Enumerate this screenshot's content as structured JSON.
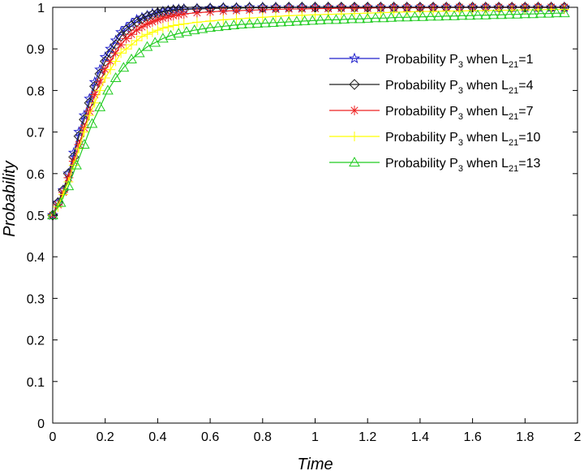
{
  "chart_data": {
    "type": "line",
    "title": "",
    "xlabel": "Time",
    "ylabel": "Probability",
    "xlim": [
      0,
      2
    ],
    "ylim": [
      0,
      1
    ],
    "xticks": [
      "0",
      "0.2",
      "0.4",
      "0.6",
      "0.8",
      "1",
      "1.2",
      "1.4",
      "1.6",
      "1.8",
      "2"
    ],
    "yticks": [
      "0",
      "0.1",
      "0.2",
      "0.3",
      "0.4",
      "0.5",
      "0.6",
      "0.7",
      "0.8",
      "0.9",
      "1"
    ],
    "grid": false,
    "legend_position": "top-right",
    "series": [
      {
        "name": "Probability P3 when L21=1",
        "legend": {
          "pre": "Probability P",
          "sub1": "3",
          "mid": " when L",
          "sub2": "21",
          "post": "=1"
        },
        "color": "#2222cc",
        "marker": "star",
        "x": [
          0,
          0.02,
          0.04,
          0.06,
          0.08,
          0.1,
          0.12,
          0.14,
          0.16,
          0.18,
          0.2,
          0.22,
          0.24,
          0.26,
          0.28,
          0.3,
          0.32,
          0.34,
          0.36,
          0.38,
          0.4,
          0.42,
          0.44,
          0.46,
          0.48,
          0.5,
          0.55,
          0.6,
          0.65,
          0.7,
          0.75,
          0.8,
          0.85,
          0.9,
          0.95,
          1,
          1.05,
          1.1,
          1.15,
          1.2,
          1.25,
          1.3,
          1.35,
          1.4,
          1.45,
          1.5,
          1.55,
          1.6,
          1.65,
          1.7,
          1.75,
          1.8,
          1.85,
          1.9,
          1.95
        ],
        "y": [
          0.5,
          0.53,
          0.56,
          0.6,
          0.65,
          0.7,
          0.74,
          0.78,
          0.82,
          0.85,
          0.88,
          0.9,
          0.92,
          0.94,
          0.95,
          0.96,
          0.97,
          0.975,
          0.98,
          0.985,
          0.988,
          0.99,
          0.992,
          0.994,
          0.995,
          0.996,
          0.997,
          0.998,
          0.999,
          0.999,
          1,
          1,
          1,
          1,
          1,
          1,
          1,
          1,
          1,
          1,
          1,
          1,
          1,
          1,
          1,
          1,
          1,
          1,
          1,
          1,
          1,
          1,
          1,
          1,
          1
        ]
      },
      {
        "name": "Probability P3 when L21=4",
        "legend": {
          "pre": "Probability P",
          "sub1": "3",
          "mid": " when L",
          "sub2": "21",
          "post": "=4"
        },
        "color": "#222222",
        "marker": "diamond",
        "x": [
          0,
          0.02,
          0.04,
          0.06,
          0.08,
          0.1,
          0.12,
          0.14,
          0.16,
          0.18,
          0.2,
          0.22,
          0.24,
          0.26,
          0.28,
          0.3,
          0.32,
          0.34,
          0.36,
          0.38,
          0.4,
          0.42,
          0.44,
          0.46,
          0.48,
          0.5,
          0.55,
          0.6,
          0.65,
          0.7,
          0.75,
          0.8,
          0.85,
          0.9,
          0.95,
          1,
          1.05,
          1.1,
          1.15,
          1.2,
          1.25,
          1.3,
          1.35,
          1.4,
          1.45,
          1.5,
          1.55,
          1.6,
          1.65,
          1.7,
          1.75,
          1.8,
          1.85,
          1.9,
          1.95
        ],
        "y": [
          0.5,
          0.53,
          0.56,
          0.6,
          0.64,
          0.69,
          0.73,
          0.77,
          0.81,
          0.84,
          0.87,
          0.89,
          0.91,
          0.93,
          0.945,
          0.955,
          0.965,
          0.972,
          0.978,
          0.982,
          0.986,
          0.989,
          0.991,
          0.993,
          0.994,
          0.995,
          0.996,
          0.997,
          0.998,
          0.998,
          0.999,
          0.999,
          0.999,
          1,
          1,
          1,
          1,
          1,
          1,
          1,
          1,
          1,
          1,
          1,
          1,
          1,
          1,
          1,
          1,
          1,
          1,
          1,
          1,
          1,
          1
        ]
      },
      {
        "name": "Probability P3 when L21=7",
        "legend": {
          "pre": "Probability P",
          "sub1": "3",
          "mid": " when L",
          "sub2": "21",
          "post": "=7"
        },
        "color": "#ee2222",
        "marker": "asterisk",
        "x": [
          0,
          0.02,
          0.04,
          0.06,
          0.08,
          0.1,
          0.12,
          0.14,
          0.16,
          0.18,
          0.2,
          0.22,
          0.24,
          0.26,
          0.28,
          0.3,
          0.32,
          0.34,
          0.36,
          0.38,
          0.4,
          0.42,
          0.44,
          0.46,
          0.48,
          0.5,
          0.55,
          0.6,
          0.65,
          0.7,
          0.75,
          0.8,
          0.85,
          0.9,
          0.95,
          1,
          1.05,
          1.1,
          1.15,
          1.2,
          1.25,
          1.3,
          1.35,
          1.4,
          1.45,
          1.5,
          1.55,
          1.6,
          1.65,
          1.7,
          1.75,
          1.8,
          1.85,
          1.9,
          1.95
        ],
        "y": [
          0.5,
          0.525,
          0.555,
          0.59,
          0.63,
          0.67,
          0.71,
          0.75,
          0.79,
          0.82,
          0.85,
          0.87,
          0.89,
          0.91,
          0.925,
          0.935,
          0.945,
          0.953,
          0.96,
          0.965,
          0.97,
          0.974,
          0.977,
          0.98,
          0.982,
          0.984,
          0.987,
          0.989,
          0.991,
          0.992,
          0.993,
          0.994,
          0.995,
          0.996,
          0.996,
          0.997,
          0.997,
          0.998,
          0.998,
          0.998,
          0.999,
          0.999,
          0.999,
          0.999,
          0.999,
          1,
          1,
          1,
          1,
          1,
          1,
          1,
          1,
          1,
          1
        ]
      },
      {
        "name": "Probability P3 when L21=10",
        "legend": {
          "pre": "Probability P",
          "sub1": "3",
          "mid": " when L",
          "sub2": "21",
          "post": "=10"
        },
        "color": "#ffff00",
        "marker": "plus",
        "x": [
          0,
          0.02,
          0.04,
          0.06,
          0.08,
          0.1,
          0.12,
          0.14,
          0.16,
          0.18,
          0.2,
          0.22,
          0.24,
          0.26,
          0.28,
          0.3,
          0.32,
          0.34,
          0.36,
          0.38,
          0.4,
          0.42,
          0.44,
          0.46,
          0.48,
          0.5,
          0.55,
          0.6,
          0.65,
          0.7,
          0.75,
          0.8,
          0.85,
          0.9,
          0.95,
          1,
          1.05,
          1.1,
          1.15,
          1.2,
          1.25,
          1.3,
          1.35,
          1.4,
          1.45,
          1.5,
          1.55,
          1.6,
          1.65,
          1.7,
          1.75,
          1.8,
          1.85,
          1.9,
          1.95
        ],
        "y": [
          0.5,
          0.52,
          0.55,
          0.58,
          0.62,
          0.66,
          0.7,
          0.74,
          0.77,
          0.8,
          0.83,
          0.85,
          0.87,
          0.89,
          0.9,
          0.91,
          0.92,
          0.93,
          0.935,
          0.94,
          0.945,
          0.95,
          0.953,
          0.956,
          0.958,
          0.96,
          0.964,
          0.967,
          0.97,
          0.972,
          0.974,
          0.976,
          0.978,
          0.98,
          0.981,
          0.982,
          0.983,
          0.984,
          0.985,
          0.986,
          0.987,
          0.988,
          0.989,
          0.99,
          0.99,
          0.991,
          0.991,
          0.992,
          0.992,
          0.993,
          0.993,
          0.994,
          0.994,
          0.995,
          0.995
        ]
      },
      {
        "name": "Probability P3 when L21=13",
        "legend": {
          "pre": "Probability P",
          "sub1": "3",
          "mid": " when L",
          "sub2": "21",
          "post": "=13"
        },
        "color": "#22cc22",
        "marker": "triangle",
        "x": [
          0,
          0.03,
          0.06,
          0.09,
          0.12,
          0.15,
          0.18,
          0.21,
          0.24,
          0.27,
          0.3,
          0.33,
          0.36,
          0.39,
          0.42,
          0.45,
          0.48,
          0.51,
          0.54,
          0.57,
          0.6,
          0.63,
          0.66,
          0.69,
          0.72,
          0.75,
          0.78,
          0.81,
          0.84,
          0.87,
          0.9,
          0.93,
          0.96,
          0.99,
          1.02,
          1.05,
          1.08,
          1.11,
          1.14,
          1.17,
          1.2,
          1.23,
          1.26,
          1.29,
          1.32,
          1.35,
          1.38,
          1.41,
          1.44,
          1.47,
          1.5,
          1.53,
          1.56,
          1.59,
          1.62,
          1.65,
          1.68,
          1.71,
          1.74,
          1.77,
          1.8,
          1.83,
          1.86,
          1.89,
          1.92,
          1.95
        ],
        "y": [
          0.5,
          0.53,
          0.57,
          0.62,
          0.67,
          0.72,
          0.76,
          0.8,
          0.83,
          0.855,
          0.875,
          0.89,
          0.905,
          0.915,
          0.925,
          0.932,
          0.937,
          0.941,
          0.945,
          0.948,
          0.951,
          0.953,
          0.955,
          0.957,
          0.959,
          0.96,
          0.961,
          0.962,
          0.963,
          0.964,
          0.965,
          0.966,
          0.967,
          0.968,
          0.969,
          0.97,
          0.97,
          0.971,
          0.972,
          0.972,
          0.973,
          0.974,
          0.974,
          0.975,
          0.976,
          0.976,
          0.977,
          0.977,
          0.978,
          0.978,
          0.979,
          0.979,
          0.98,
          0.98,
          0.981,
          0.981,
          0.982,
          0.982,
          0.983,
          0.983,
          0.984,
          0.984,
          0.985,
          0.985,
          0.986,
          0.986
        ]
      }
    ]
  }
}
